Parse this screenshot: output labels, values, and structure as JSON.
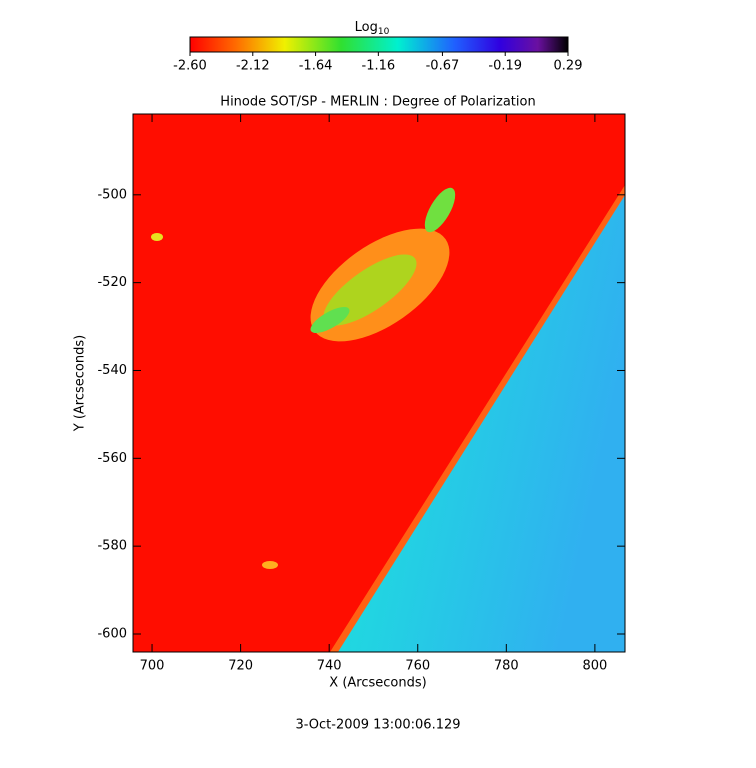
{
  "chart_data": {
    "type": "heatmap",
    "title": "Hinode SOT/SP - MERLIN : Degree of Polarization",
    "xlabel": "X (Arcseconds)",
    "ylabel": "Y (Arcseconds)",
    "colorbar_label": "Log",
    "colorbar_label_subscript": "10",
    "zlim": [
      -2.6,
      0.29
    ],
    "zticks": [
      {
        "value": -2.6,
        "label": "-2.60"
      },
      -2.12,
      -1.64,
      -1.16,
      -0.67,
      -0.19,
      0.29
    ],
    "xlim": [
      695.7,
      806.8
    ],
    "xticks": [
      700,
      720,
      740,
      760,
      780,
      800
    ],
    "ylim": [
      -604.1,
      -481.6
    ],
    "yticks": [
      -500,
      -520,
      -540,
      -560,
      -580,
      -600
    ],
    "annotation": "3-Oct-2009 13:00:06.129"
  }
}
